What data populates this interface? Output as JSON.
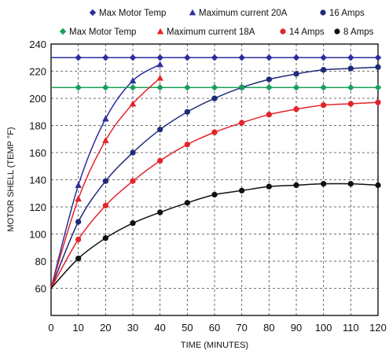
{
  "chart_data": {
    "type": "line",
    "xlabel": "TIME (MINUTES)",
    "ylabel": "MOTOR SHELL (TEMP °F)",
    "xlim": [
      0,
      120
    ],
    "ylim": [
      40,
      240
    ],
    "xticks": [
      0,
      10,
      20,
      30,
      40,
      50,
      60,
      70,
      80,
      90,
      100,
      110,
      120
    ],
    "yticks": [
      60,
      80,
      100,
      120,
      140,
      160,
      180,
      200,
      220,
      240
    ],
    "grid": true,
    "legend_position": "top",
    "series": [
      {
        "name": "Max Motor Temp",
        "color": "#2b2f9e",
        "marker": "diamond",
        "x": [
          0,
          10,
          20,
          30,
          40,
          50,
          60,
          70,
          80,
          90,
          100,
          110,
          120
        ],
        "y": [
          230,
          230,
          230,
          230,
          230,
          230,
          230,
          230,
          230,
          230,
          230,
          230,
          230
        ]
      },
      {
        "name": "Maximum current 20A",
        "color": "#2b2f9e",
        "marker": "triangle",
        "x": [
          0,
          10,
          20,
          30,
          40
        ],
        "y": [
          60,
          136,
          185,
          213,
          225
        ]
      },
      {
        "name": "16 Amps",
        "color": "#1f2a78",
        "marker": "circle",
        "x": [
          0,
          10,
          20,
          30,
          40,
          50,
          60,
          70,
          80,
          90,
          100,
          110,
          120
        ],
        "y": [
          60,
          109,
          139,
          160,
          177,
          190,
          200,
          208,
          214,
          218,
          221,
          222,
          223
        ]
      },
      {
        "name": "Max Motor Temp",
        "color": "#1aa05a",
        "marker": "diamond",
        "x": [
          0,
          10,
          20,
          30,
          40,
          50,
          60,
          70,
          80,
          90,
          100,
          110,
          120
        ],
        "y": [
          208,
          208,
          208,
          208,
          208,
          208,
          208,
          208,
          208,
          208,
          208,
          208,
          208
        ]
      },
      {
        "name": "Maximum current 18A",
        "color": "#e4242a",
        "marker": "triangle",
        "x": [
          0,
          10,
          20,
          30,
          40
        ],
        "y": [
          60,
          126,
          169,
          196,
          215
        ]
      },
      {
        "name": "14 Amps",
        "color": "#e4242a",
        "marker": "circle",
        "x": [
          0,
          10,
          20,
          30,
          40,
          50,
          60,
          70,
          80,
          90,
          100,
          110,
          120
        ],
        "y": [
          60,
          96,
          121,
          139,
          154,
          166,
          175,
          182,
          188,
          192,
          195,
          196,
          197
        ]
      },
      {
        "name": "8 Amps",
        "color": "#111111",
        "marker": "circle",
        "x": [
          0,
          10,
          20,
          30,
          40,
          50,
          60,
          70,
          80,
          90,
          100,
          110,
          120
        ],
        "y": [
          60,
          82,
          97,
          108,
          116,
          123,
          129,
          132,
          135,
          136,
          137,
          137,
          136
        ]
      }
    ]
  }
}
